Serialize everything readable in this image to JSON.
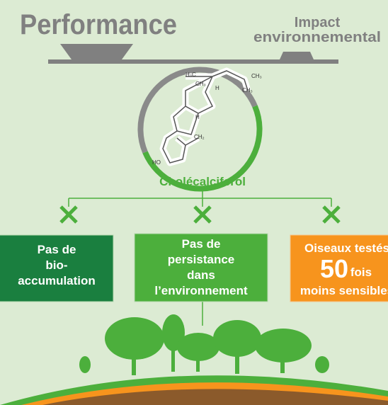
{
  "header": {
    "left": "Performance",
    "right": [
      "Impact",
      "environnemental"
    ]
  },
  "molecule": {
    "name": "Cholécalciferol",
    "labels": [
      "H₃C",
      "CH₃",
      "CH₃",
      "CH₃",
      "H",
      "H",
      "HO",
      "CH₂"
    ]
  },
  "boxes": [
    {
      "lines": [
        "Pas de",
        "bio-",
        "accumulation"
      ]
    },
    {
      "lines": [
        "Pas de",
        "persistance",
        "dans",
        "l’environnement"
      ]
    },
    {
      "lines": [
        "Oiseaux testés",
        "50",
        "fois",
        "moins sensibles"
      ]
    }
  ]
}
